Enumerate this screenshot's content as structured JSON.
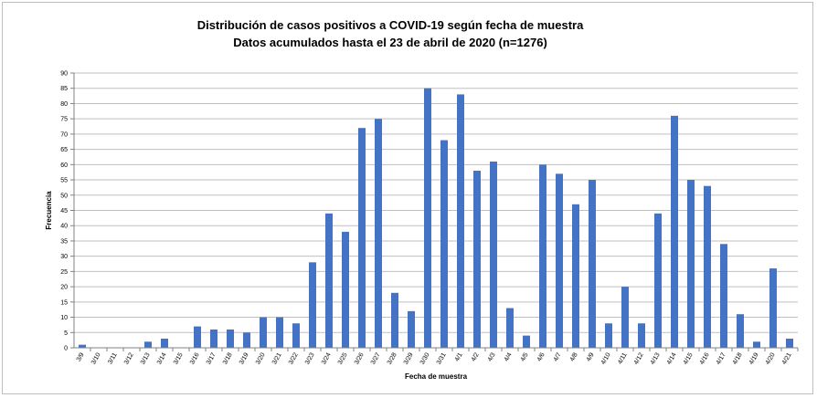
{
  "chart_data": {
    "type": "bar",
    "title": "Distribución de casos positivos a COVID-19 según fecha de muestra",
    "subtitle": "Datos acumulados hasta el 23 de abril de 2020 (n=1276)",
    "xlabel": "Fecha de muestra",
    "ylabel": "Frecuencia",
    "ylim": [
      0,
      90
    ],
    "ytick_step": 5,
    "grid": true,
    "legend": "none",
    "bar_color": "#4472c4",
    "categories": [
      "3/9",
      "3/10",
      "3/11",
      "3/12",
      "3/13",
      "3/14",
      "3/15",
      "3/16",
      "3/17",
      "3/18",
      "3/19",
      "3/20",
      "3/21",
      "3/22",
      "3/23",
      "3/24",
      "3/25",
      "3/26",
      "3/27",
      "3/28",
      "3/29",
      "3/30",
      "3/31",
      "4/1",
      "4/2",
      "4/3",
      "4/4",
      "4/5",
      "4/6",
      "4/7",
      "4/8",
      "4/9",
      "4/10",
      "4/11",
      "4/12",
      "4/13",
      "4/14",
      "4/15",
      "4/16",
      "4/17",
      "4/18",
      "4/19",
      "4/20",
      "4/21"
    ],
    "values": [
      1,
      0,
      0,
      0,
      2,
      3,
      0,
      7,
      6,
      6,
      5,
      10,
      10,
      8,
      28,
      44,
      38,
      72,
      75,
      18,
      12,
      85,
      68,
      83,
      58,
      61,
      13,
      4,
      60,
      57,
      47,
      55,
      8,
      20,
      8,
      44,
      76,
      55,
      53,
      34,
      11,
      2,
      26,
      3
    ]
  }
}
